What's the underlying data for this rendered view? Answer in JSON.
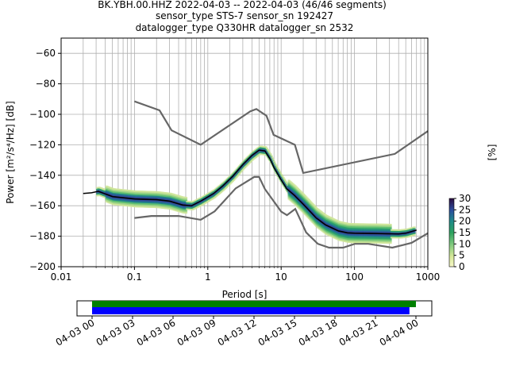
{
  "header": {
    "title_line1": "BK.YBH.00.HHZ   2022-04-03 -- 2022-04-03  (46/46 segments)",
    "title_line2": "sensor_type STS-7 sensor_sn 192427",
    "title_line3": "datalogger_type Q330HR datalogger_sn 2532"
  },
  "chart_data": {
    "type": "heatmap",
    "title": "BK.YBH.00.HHZ   2022-04-03 -- 2022-04-03  (46/46 segments)",
    "xlabel": "Period [s]",
    "ylabel": "Power [m²/s⁴/Hz] [dB]",
    "xscale": "log",
    "xlim": [
      0.01,
      1000
    ],
    "ylim": [
      -200,
      -50
    ],
    "grid": true,
    "x_ticks": [
      {
        "value": 0.01,
        "label": "0.01"
      },
      {
        "value": 0.1,
        "label": "0.1"
      },
      {
        "value": 1,
        "label": "1"
      },
      {
        "value": 10,
        "label": "10"
      },
      {
        "value": 100,
        "label": "100"
      },
      {
        "value": 1000,
        "label": "1000"
      }
    ],
    "y_ticks": [
      {
        "value": -60,
        "label": "−60"
      },
      {
        "value": -80,
        "label": "−80"
      },
      {
        "value": -100,
        "label": "−100"
      },
      {
        "value": -120,
        "label": "−120"
      },
      {
        "value": -140,
        "label": "−140"
      },
      {
        "value": -160,
        "label": "−160"
      },
      {
        "value": -180,
        "label": "−180"
      },
      {
        "value": -200,
        "label": "−200"
      }
    ],
    "colorbar": {
      "label": "[%]",
      "min": 0,
      "max": 30,
      "colormap": "pqlx",
      "ticks": [
        {
          "value": 0,
          "label": "0"
        },
        {
          "value": 5,
          "label": "5"
        },
        {
          "value": 10,
          "label": "10"
        },
        {
          "value": 15,
          "label": "15"
        },
        {
          "value": 20,
          "label": "20"
        },
        {
          "value": 25,
          "label": "25"
        },
        {
          "value": 30,
          "label": "30"
        }
      ]
    },
    "series": [
      {
        "role": "high_noise_model",
        "color": "#666666",
        "points": [
          [
            0.1,
            -91.5
          ],
          [
            0.22,
            -97.4
          ],
          [
            0.32,
            -110.5
          ],
          [
            0.8,
            -120
          ],
          [
            3.8,
            -98
          ],
          [
            4.6,
            -96.5
          ],
          [
            6.3,
            -101
          ],
          [
            7.9,
            -113.5
          ],
          [
            15.4,
            -120
          ],
          [
            20,
            -138.5
          ],
          [
            354.8,
            -126
          ],
          [
            1000,
            -111
          ]
        ]
      },
      {
        "role": "low_noise_model",
        "color": "#666666",
        "points": [
          [
            0.1,
            -168
          ],
          [
            0.17,
            -166.7
          ],
          [
            0.4,
            -166.7
          ],
          [
            0.8,
            -169.2
          ],
          [
            1.24,
            -163.7
          ],
          [
            2.4,
            -148.6
          ],
          [
            4.3,
            -141.1
          ],
          [
            5,
            -141.1
          ],
          [
            6,
            -149
          ],
          [
            10,
            -163.8
          ],
          [
            12,
            -166.2
          ],
          [
            15.6,
            -162.1
          ],
          [
            21.9,
            -177.5
          ],
          [
            31.6,
            -185
          ],
          [
            45,
            -187.5
          ],
          [
            70,
            -187.5
          ],
          [
            101,
            -185
          ],
          [
            154,
            -185
          ],
          [
            328,
            -187.5
          ],
          [
            600,
            -184.4
          ],
          [
            1000,
            -178
          ]
        ]
      },
      {
        "role": "mode",
        "color": "#000000",
        "points": [
          [
            0.02,
            -152
          ],
          [
            0.026,
            -151.5
          ],
          [
            0.032,
            -150.5
          ],
          [
            0.05,
            -154
          ],
          [
            0.1,
            -155.5
          ],
          [
            0.2,
            -156
          ],
          [
            0.3,
            -157
          ],
          [
            0.45,
            -159.5
          ],
          [
            0.6,
            -160
          ],
          [
            0.8,
            -157
          ],
          [
            1.2,
            -152
          ],
          [
            1.6,
            -147
          ],
          [
            2.2,
            -140.5
          ],
          [
            3,
            -133
          ],
          [
            4,
            -127
          ],
          [
            5,
            -123.5
          ],
          [
            6,
            -124
          ],
          [
            7,
            -129
          ],
          [
            8,
            -135
          ],
          [
            10,
            -143
          ],
          [
            12,
            -149
          ],
          [
            15,
            -153
          ],
          [
            20,
            -159
          ],
          [
            30,
            -168
          ],
          [
            40,
            -172.5
          ],
          [
            60,
            -176.5
          ],
          [
            80,
            -177.8
          ],
          [
            100,
            -178
          ],
          [
            200,
            -178.2
          ],
          [
            400,
            -178.5
          ],
          [
            500,
            -178
          ],
          [
            700,
            -176
          ]
        ]
      }
    ]
  },
  "time_axis": {
    "labels": [
      "04-03 00",
      "04-03 03",
      "04-03 06",
      "04-03 09",
      "04-03 12",
      "04-03 15",
      "04-03 18",
      "04-03 21",
      "04-04 00"
    ],
    "coverage_percent": [
      100,
      98
    ],
    "colors": [
      "#008000",
      "#0000ff"
    ]
  }
}
